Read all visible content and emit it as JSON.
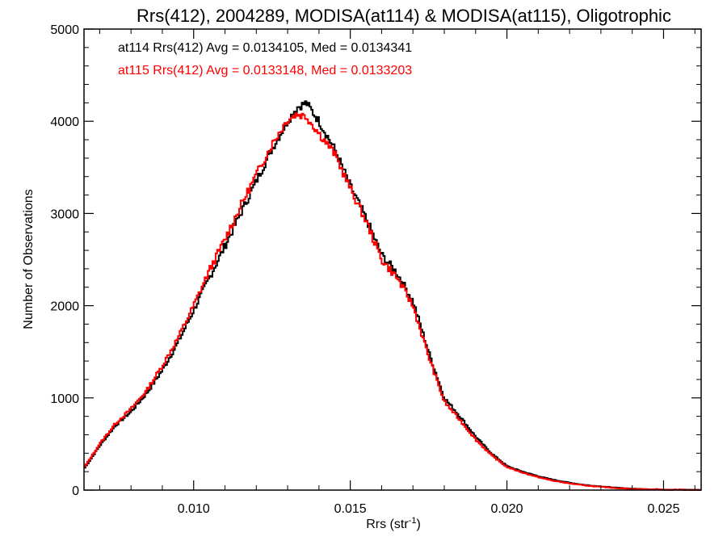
{
  "chart_data": {
    "type": "line",
    "title": "Rrs(412), 2004289, MODISA(at114) & MODISA(at115), Oligotrophic",
    "xlabel_base": "Rrs (str",
    "xlabel_sup": "-1",
    "xlabel_close": ")",
    "ylabel": "Number of Observations",
    "xlim": [
      0.0065,
      0.0262
    ],
    "ylim": [
      0,
      5000
    ],
    "x_ticks": [
      "0.010",
      "0.015",
      "0.020",
      "0.025"
    ],
    "x_tick_values": [
      0.01,
      0.015,
      0.02,
      0.025
    ],
    "y_ticks": [
      "0",
      "1000",
      "2000",
      "3000",
      "4000",
      "5000"
    ],
    "y_tick_values": [
      0,
      1000,
      2000,
      3000,
      4000,
      5000
    ],
    "legend_placement": "top-left",
    "grid": false,
    "series": [
      {
        "label": "at114 Rrs(412) Avg = 0.0134105, Med = 0.0134341",
        "color": "#000000",
        "x": [
          0.0065,
          0.007,
          0.0075,
          0.008,
          0.0085,
          0.009,
          0.0095,
          0.01,
          0.0105,
          0.011,
          0.0115,
          0.012,
          0.0125,
          0.013,
          0.0133,
          0.0136,
          0.014,
          0.0145,
          0.015,
          0.0155,
          0.016,
          0.0165,
          0.017,
          0.0175,
          0.018,
          0.0185,
          0.019,
          0.0195,
          0.02,
          0.0205,
          0.021,
          0.0215,
          0.022,
          0.0225,
          0.023,
          0.0235,
          0.024,
          0.0245,
          0.025,
          0.0255,
          0.0262
        ],
        "y": [
          230,
          480,
          700,
          850,
          1050,
          1300,
          1600,
          1950,
          2300,
          2650,
          3000,
          3350,
          3700,
          4000,
          4150,
          4200,
          4000,
          3700,
          3300,
          2950,
          2550,
          2350,
          2050,
          1500,
          1000,
          800,
          580,
          400,
          260,
          200,
          150,
          110,
          80,
          55,
          40,
          25,
          15,
          10,
          6,
          4,
          2
        ]
      },
      {
        "label": "at115 Rrs(412) Avg = 0.0133148, Med = 0.0133203",
        "color": "#ff0000",
        "x": [
          0.0065,
          0.007,
          0.0075,
          0.008,
          0.0085,
          0.009,
          0.0095,
          0.01,
          0.0105,
          0.011,
          0.0115,
          0.012,
          0.0125,
          0.013,
          0.0133,
          0.0136,
          0.014,
          0.0145,
          0.015,
          0.0155,
          0.016,
          0.0165,
          0.017,
          0.0175,
          0.018,
          0.0185,
          0.019,
          0.0195,
          0.02,
          0.0205,
          0.021,
          0.0215,
          0.022,
          0.0225,
          0.023,
          0.0235,
          0.024,
          0.0245,
          0.025,
          0.0255,
          0.0262
        ],
        "y": [
          240,
          500,
          720,
          880,
          1080,
          1350,
          1650,
          2000,
          2380,
          2720,
          3080,
          3420,
          3750,
          4020,
          4080,
          4050,
          3870,
          3650,
          3270,
          2920,
          2500,
          2300,
          2000,
          1450,
          960,
          760,
          550,
          380,
          250,
          190,
          140,
          100,
          72,
          50,
          35,
          22,
          13,
          8,
          5,
          3,
          2
        ]
      }
    ]
  }
}
